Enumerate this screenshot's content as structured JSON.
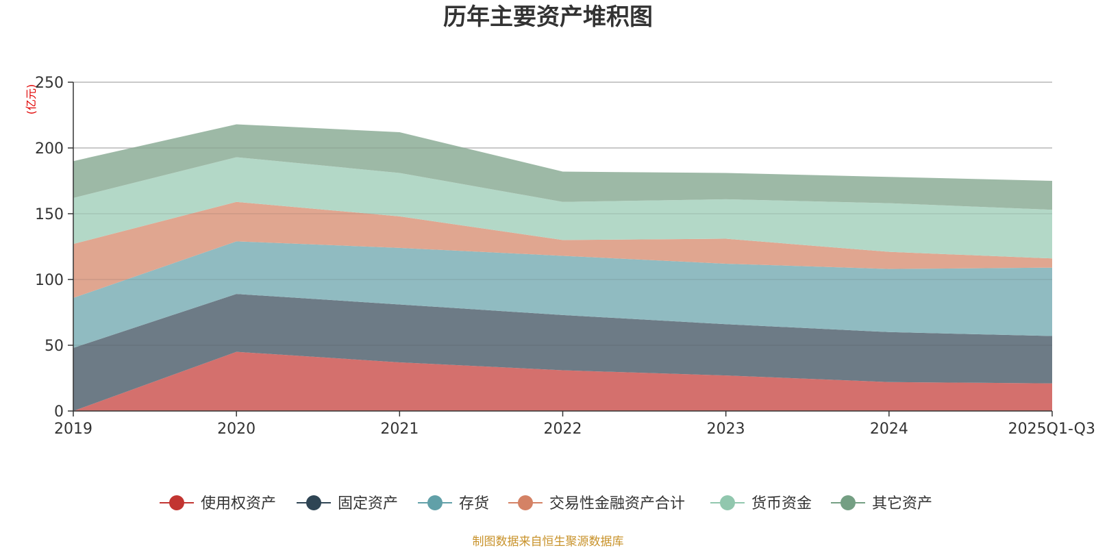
{
  "chart_data": {
    "type": "area",
    "stacked": true,
    "title": "历年主要资产堆积图",
    "ylabel": "(亿元)",
    "xlabel": "",
    "ylim": [
      0,
      250
    ],
    "yticks": [
      0,
      50,
      100,
      150,
      200,
      250
    ],
    "grid": true,
    "legend_position": "bottom",
    "categories": [
      "2019",
      "2020",
      "2021",
      "2022",
      "2023",
      "2024",
      "2025Q1-Q3"
    ],
    "series": [
      {
        "name": "使用权资产",
        "color": "#c23531",
        "fill": "#d4706d",
        "values": [
          0,
          45,
          37,
          31,
          27,
          22,
          21
        ]
      },
      {
        "name": "固定资产",
        "color": "#2f4554",
        "fill": "#6d7b86",
        "values": [
          48,
          44,
          44,
          42,
          39,
          38,
          36
        ]
      },
      {
        "name": "存货",
        "color": "#61a0a8",
        "fill": "#90bbc1",
        "values": [
          38,
          40,
          43,
          45,
          46,
          48,
          52
        ]
      },
      {
        "name": "交易性金融资产合计",
        "color": "#d48265",
        "fill": "#e0a690",
        "values": [
          41,
          30,
          24,
          12,
          19,
          13,
          7
        ]
      },
      {
        "name": "货币资金",
        "color": "#91c7ae",
        "fill": "#b3d8c7",
        "values": [
          35,
          34,
          33,
          29,
          30,
          37,
          37
        ]
      },
      {
        "name": "其它资产",
        "color": "#749f83",
        "fill": "#9db9a6",
        "values": [
          28,
          25,
          31,
          23,
          20,
          20,
          22
        ]
      }
    ]
  },
  "source_note": "制图数据来自恒生聚源数据库"
}
